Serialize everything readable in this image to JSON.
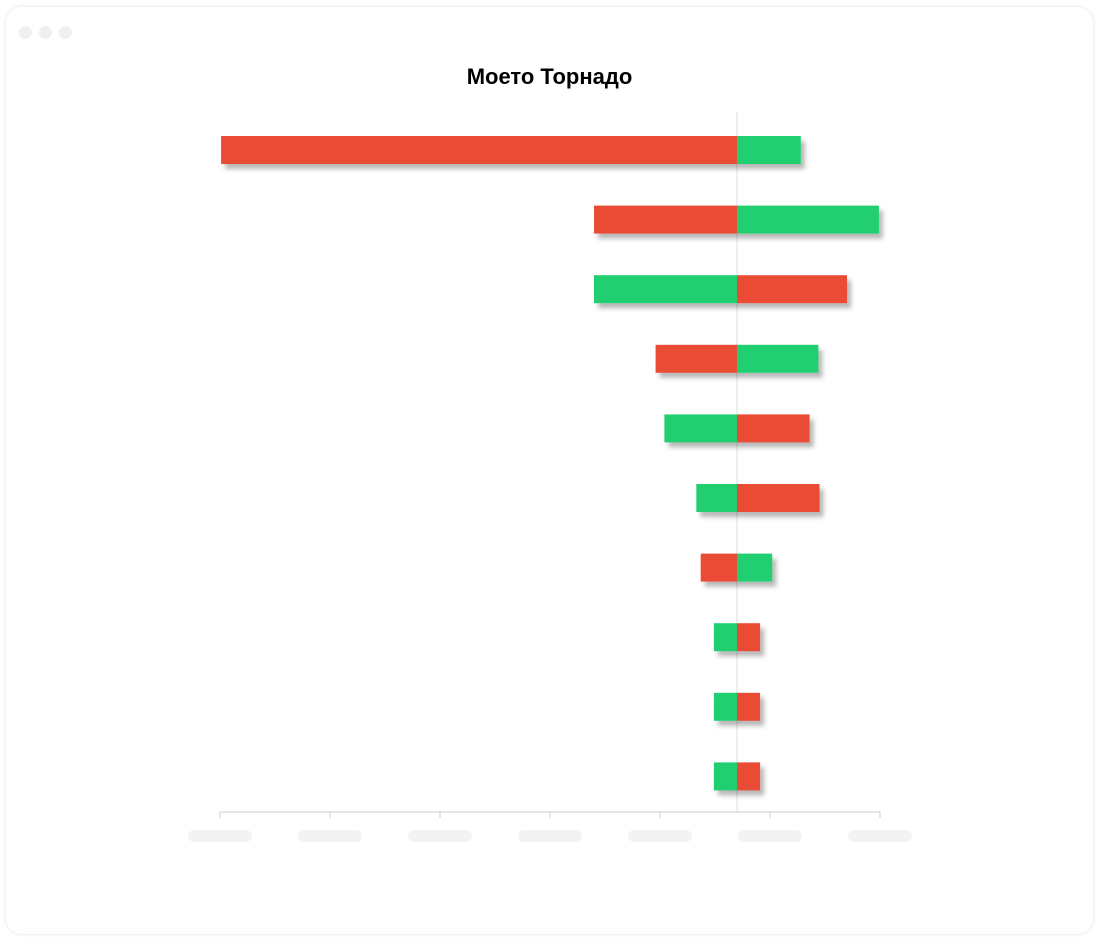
{
  "window": {
    "controls": [
      "close",
      "minimize",
      "maximize"
    ]
  },
  "chart_data": {
    "type": "bar",
    "orientation": "horizontal",
    "variant": "tornado",
    "title": "Моето Торнадо",
    "xlabel": "",
    "ylabel": "",
    "tick_labels_visible": false,
    "tick_count": 7,
    "xlim": [
      -4.7,
      1.3
    ],
    "grid": false,
    "colors": {
      "red": "#E94B36",
      "green": "#20CF6F",
      "axis": "#dddddd"
    },
    "bars": [
      {
        "low": -4.69,
        "high": 0.58,
        "low_color": "red",
        "high_color": "green"
      },
      {
        "low": -1.3,
        "high": 1.29,
        "low_color": "red",
        "high_color": "green"
      },
      {
        "low": -1.3,
        "high": 1.0,
        "low_color": "green",
        "high_color": "red"
      },
      {
        "low": -0.74,
        "high": 0.74,
        "low_color": "red",
        "high_color": "green"
      },
      {
        "low": -0.66,
        "high": 0.66,
        "low_color": "green",
        "high_color": "red"
      },
      {
        "low": -0.37,
        "high": 0.75,
        "low_color": "green",
        "high_color": "red"
      },
      {
        "low": -0.33,
        "high": 0.32,
        "low_color": "red",
        "high_color": "green"
      },
      {
        "low": -0.21,
        "high": 0.21,
        "low_color": "green",
        "high_color": "red"
      },
      {
        "low": -0.21,
        "high": 0.21,
        "low_color": "green",
        "high_color": "red"
      },
      {
        "low": -0.21,
        "high": 0.21,
        "low_color": "green",
        "high_color": "red"
      }
    ]
  }
}
